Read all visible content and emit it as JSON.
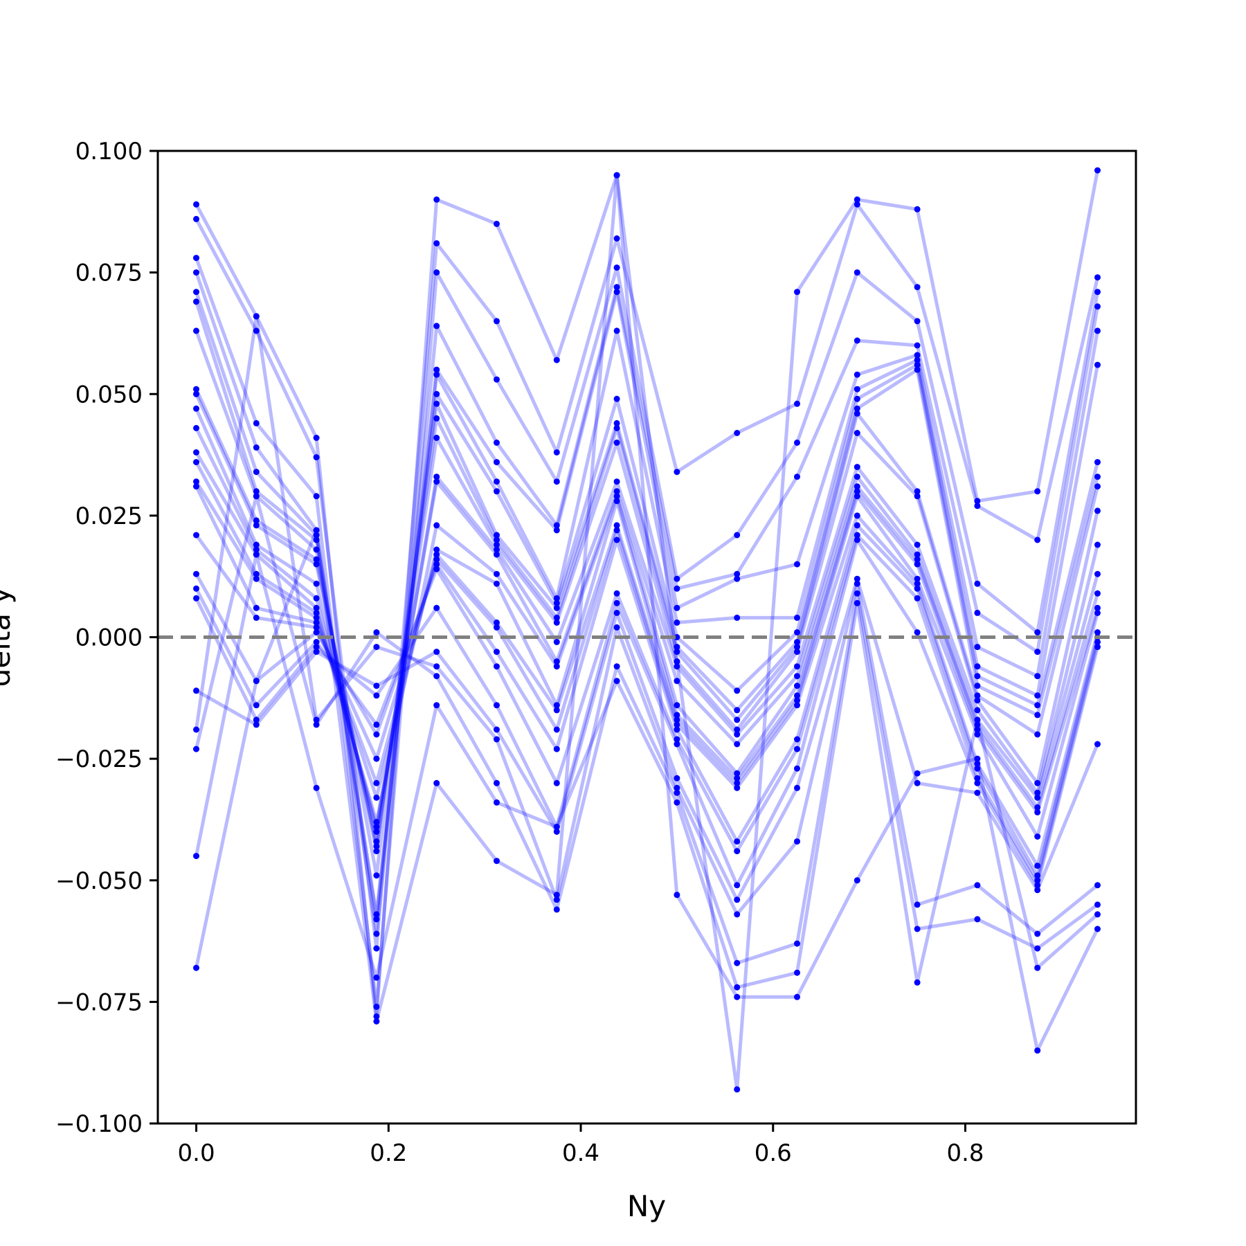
{
  "chart_data": {
    "type": "line",
    "title": "",
    "xlabel": "Ny",
    "ylabel": "delta y",
    "xlim": [
      -0.04,
      0.9775
    ],
    "ylim": [
      -0.1,
      0.1
    ],
    "grid": false,
    "legend": "none",
    "x_ticks": [
      0.0,
      0.2,
      0.4,
      0.6,
      0.8
    ],
    "x_tick_labels": [
      "0.0",
      "0.2",
      "0.4",
      "0.6",
      "0.8"
    ],
    "y_ticks": [
      -0.1,
      -0.075,
      -0.05,
      -0.025,
      0.0,
      0.025,
      0.05,
      0.075,
      0.1
    ],
    "y_tick_labels": [
      "−0.100",
      "−0.075",
      "−0.050",
      "−0.025",
      "0.000",
      "0.025",
      "0.050",
      "0.075",
      "0.100"
    ],
    "reference_line": {
      "y": 0.0,
      "style": "dashed",
      "color": "#808080"
    },
    "line_color": "#0000ff",
    "line_alpha": 0.27,
    "marker_color": "#0000ff",
    "x": [
      0.0,
      0.0625,
      0.125,
      0.1875,
      0.25,
      0.3125,
      0.375,
      0.4375,
      0.5,
      0.5625,
      0.625,
      0.6875,
      0.75,
      0.8125,
      0.875,
      0.9375
    ],
    "series": [
      {
        "values": [
          0.089,
          0.066,
          0.041,
          -0.078,
          0.09,
          0.085,
          0.057,
          0.095,
          -0.005,
          -0.093,
          0.071,
          0.09,
          0.088,
          0.028,
          0.03,
          0.096
        ]
      },
      {
        "values": [
          0.086,
          0.063,
          0.037,
          -0.064,
          0.081,
          0.065,
          0.038,
          0.082,
          0.034,
          0.042,
          0.048,
          0.089,
          0.072,
          0.027,
          0.02,
          0.074
        ]
      },
      {
        "values": [
          0.078,
          0.044,
          0.029,
          -0.076,
          0.075,
          0.053,
          0.032,
          0.076,
          0.012,
          0.021,
          0.04,
          0.075,
          0.065,
          0.011,
          0.001,
          0.071
        ]
      },
      {
        "values": [
          0.075,
          0.039,
          0.022,
          -0.061,
          0.064,
          0.04,
          0.023,
          0.072,
          0.01,
          0.013,
          0.033,
          0.061,
          0.06,
          0.005,
          -0.003,
          0.068
        ]
      },
      {
        "values": [
          0.071,
          0.034,
          0.021,
          -0.058,
          0.055,
          0.036,
          0.022,
          0.071,
          0.006,
          0.012,
          0.015,
          0.054,
          0.058,
          -0.002,
          -0.008,
          0.063
        ]
      },
      {
        "values": [
          0.069,
          0.03,
          0.02,
          -0.057,
          0.054,
          0.032,
          0.008,
          0.063,
          0.003,
          0.004,
          0.004,
          0.051,
          0.057,
          -0.006,
          -0.012,
          0.056
        ]
      },
      {
        "values": [
          0.063,
          0.029,
          0.018,
          -0.049,
          0.05,
          0.03,
          0.007,
          0.049,
          0.0,
          -0.011,
          0.001,
          0.049,
          0.056,
          -0.008,
          -0.014,
          0.036
        ]
      },
      {
        "values": [
          0.051,
          0.024,
          0.016,
          -0.044,
          0.048,
          0.021,
          0.006,
          0.044,
          -0.002,
          -0.015,
          -0.001,
          0.047,
          0.055,
          -0.01,
          -0.016,
          0.033
        ]
      },
      {
        "values": [
          0.05,
          0.023,
          0.015,
          -0.043,
          0.045,
          0.02,
          0.004,
          0.043,
          -0.003,
          -0.017,
          -0.002,
          0.046,
          0.03,
          -0.012,
          -0.02,
          0.031
        ]
      },
      {
        "values": [
          0.047,
          0.019,
          0.011,
          -0.042,
          0.041,
          0.019,
          0.003,
          0.04,
          -0.005,
          -0.019,
          -0.003,
          0.042,
          0.029,
          -0.013,
          -0.03,
          0.026
        ]
      },
      {
        "values": [
          0.043,
          0.018,
          0.008,
          -0.04,
          0.033,
          0.018,
          -0.001,
          0.032,
          -0.006,
          -0.02,
          -0.006,
          0.035,
          0.019,
          -0.015,
          -0.032,
          0.019
        ]
      },
      {
        "values": [
          0.038,
          0.017,
          0.006,
          -0.039,
          0.032,
          0.017,
          -0.005,
          0.03,
          -0.009,
          -0.022,
          -0.008,
          0.033,
          0.017,
          -0.017,
          -0.033,
          0.013
        ]
      },
      {
        "values": [
          0.036,
          0.013,
          0.005,
          -0.038,
          0.023,
          0.013,
          -0.006,
          0.029,
          -0.014,
          -0.028,
          -0.01,
          0.031,
          0.016,
          -0.018,
          -0.035,
          0.009
        ]
      },
      {
        "values": [
          0.032,
          0.012,
          0.004,
          -0.033,
          0.018,
          0.011,
          -0.014,
          0.028,
          -0.016,
          -0.029,
          -0.012,
          0.03,
          0.015,
          -0.019,
          -0.036,
          0.006
        ]
      },
      {
        "values": [
          0.031,
          0.006,
          0.003,
          -0.03,
          0.017,
          0.003,
          -0.015,
          0.023,
          -0.017,
          -0.03,
          -0.013,
          0.029,
          0.012,
          -0.02,
          -0.041,
          0.005
        ]
      },
      {
        "values": [
          0.021,
          0.004,
          0.002,
          -0.025,
          0.016,
          0.002,
          -0.019,
          0.022,
          -0.018,
          -0.031,
          -0.014,
          0.025,
          0.011,
          -0.026,
          -0.047,
          0.001
        ]
      },
      {
        "values": [
          0.013,
          -0.009,
          0.001,
          -0.02,
          0.015,
          -0.003,
          -0.023,
          0.02,
          -0.019,
          -0.042,
          -0.021,
          0.023,
          0.01,
          -0.027,
          -0.049,
          0.0
        ]
      },
      {
        "values": [
          0.01,
          -0.014,
          -0.001,
          -0.018,
          0.014,
          -0.006,
          -0.03,
          0.009,
          -0.021,
          -0.044,
          -0.023,
          0.021,
          0.008,
          -0.029,
          -0.05,
          -0.001
        ]
      },
      {
        "values": [
          0.008,
          -0.017,
          -0.002,
          -0.012,
          0.006,
          -0.014,
          -0.039,
          0.007,
          -0.022,
          -0.051,
          -0.027,
          0.02,
          0.001,
          -0.03,
          -0.051,
          -0.002
        ]
      },
      {
        "values": [
          -0.011,
          -0.018,
          -0.003,
          -0.01,
          -0.003,
          -0.019,
          -0.04,
          0.005,
          -0.029,
          -0.054,
          -0.031,
          0.012,
          -0.03,
          -0.032,
          -0.052,
          -0.022
        ]
      },
      {
        "values": [
          -0.019,
          0.066,
          -0.017,
          -0.002,
          -0.006,
          -0.021,
          -0.054,
          0.002,
          -0.031,
          -0.057,
          -0.042,
          0.011,
          -0.055,
          -0.051,
          -0.061,
          -0.051
        ]
      },
      {
        "values": [
          -0.023,
          0.029,
          -0.018,
          0.001,
          -0.008,
          -0.03,
          -0.056,
          -0.006,
          -0.032,
          -0.067,
          -0.063,
          0.009,
          -0.06,
          -0.058,
          -0.064,
          -0.055
        ]
      },
      {
        "values": [
          -0.045,
          0.017,
          -0.031,
          -0.07,
          -0.014,
          -0.034,
          -0.039,
          -0.009,
          -0.034,
          -0.072,
          -0.069,
          0.007,
          -0.071,
          -0.017,
          -0.068,
          -0.057
        ]
      },
      {
        "values": [
          -0.068,
          -0.009,
          0.022,
          -0.079,
          -0.03,
          -0.046,
          -0.053,
          0.095,
          -0.053,
          -0.074,
          -0.074,
          -0.05,
          -0.028,
          -0.025,
          -0.085,
          -0.06
        ]
      }
    ]
  }
}
